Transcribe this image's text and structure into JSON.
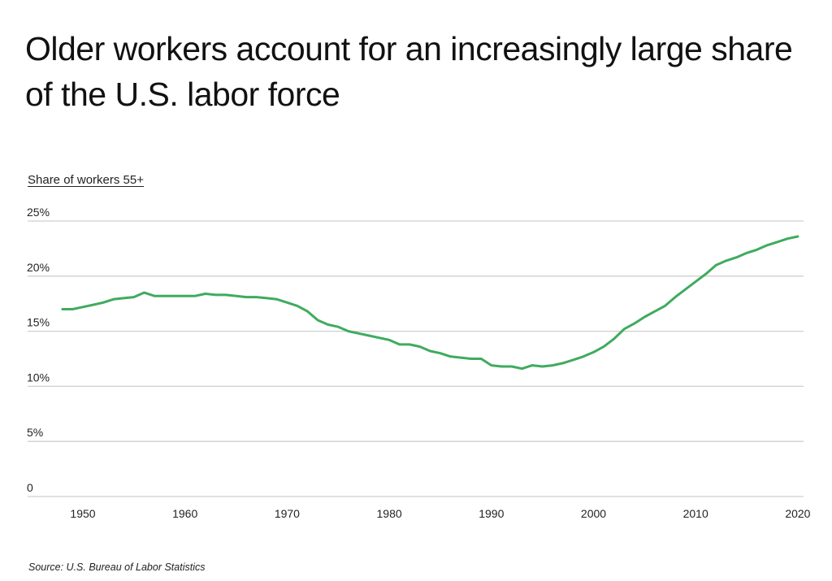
{
  "header": {
    "title": "Older workers account for an increasingly large share of the U.S. labor force"
  },
  "footer": {
    "source": "Source:  U.S. Bureau of Labor Statistics"
  },
  "colors": {
    "line": "#3fab5e",
    "grid": "#cfcfcf",
    "text": "#1a1a1a"
  },
  "chart_data": {
    "type": "line",
    "title": "Older workers account for an increasingly large share of the U.S. labor force",
    "xlabel": "",
    "ylabel": "Share of workers 55+",
    "ylim": [
      0,
      25
    ],
    "xlim": [
      1948,
      2020
    ],
    "grid": true,
    "legend": null,
    "y_ticks": [
      "0",
      "5%",
      "10%",
      "15%",
      "20%",
      "25%"
    ],
    "x_ticks": [
      "1950",
      "1960",
      "1970",
      "1980",
      "1990",
      "2000",
      "2010",
      "2020"
    ],
    "annotations": [
      "Source:  U.S. Bureau of Labor Statistics"
    ],
    "series": [
      {
        "name": "Share of workers 55+",
        "x": [
          1948,
          1949,
          1950,
          1951,
          1952,
          1953,
          1954,
          1955,
          1956,
          1957,
          1958,
          1959,
          1960,
          1961,
          1962,
          1963,
          1964,
          1965,
          1966,
          1967,
          1968,
          1969,
          1970,
          1971,
          1972,
          1973,
          1974,
          1975,
          1976,
          1977,
          1978,
          1979,
          1980,
          1981,
          1982,
          1983,
          1984,
          1985,
          1986,
          1987,
          1988,
          1989,
          1990,
          1991,
          1992,
          1993,
          1994,
          1995,
          1996,
          1997,
          1998,
          1999,
          2000,
          2001,
          2002,
          2003,
          2004,
          2005,
          2006,
          2007,
          2008,
          2009,
          2010,
          2011,
          2012,
          2013,
          2014,
          2015,
          2016,
          2017,
          2018,
          2019,
          2020
        ],
        "values": [
          17.0,
          17.0,
          17.2,
          17.4,
          17.6,
          17.9,
          18.0,
          18.1,
          18.5,
          18.2,
          18.2,
          18.2,
          18.2,
          18.2,
          18.4,
          18.3,
          18.3,
          18.2,
          18.1,
          18.1,
          18.0,
          17.9,
          17.6,
          17.3,
          16.8,
          16.0,
          15.6,
          15.4,
          15.0,
          14.8,
          14.6,
          14.4,
          14.2,
          13.8,
          13.8,
          13.6,
          13.2,
          13.0,
          12.7,
          12.6,
          12.5,
          12.5,
          11.9,
          11.8,
          11.8,
          11.6,
          11.9,
          11.8,
          11.9,
          12.1,
          12.4,
          12.7,
          13.1,
          13.6,
          14.3,
          15.2,
          15.7,
          16.3,
          16.8,
          17.3,
          18.1,
          18.8,
          19.5,
          20.2,
          21.0,
          21.4,
          21.7,
          22.1,
          22.4,
          22.8,
          23.1,
          23.4,
          23.6
        ]
      }
    ]
  }
}
